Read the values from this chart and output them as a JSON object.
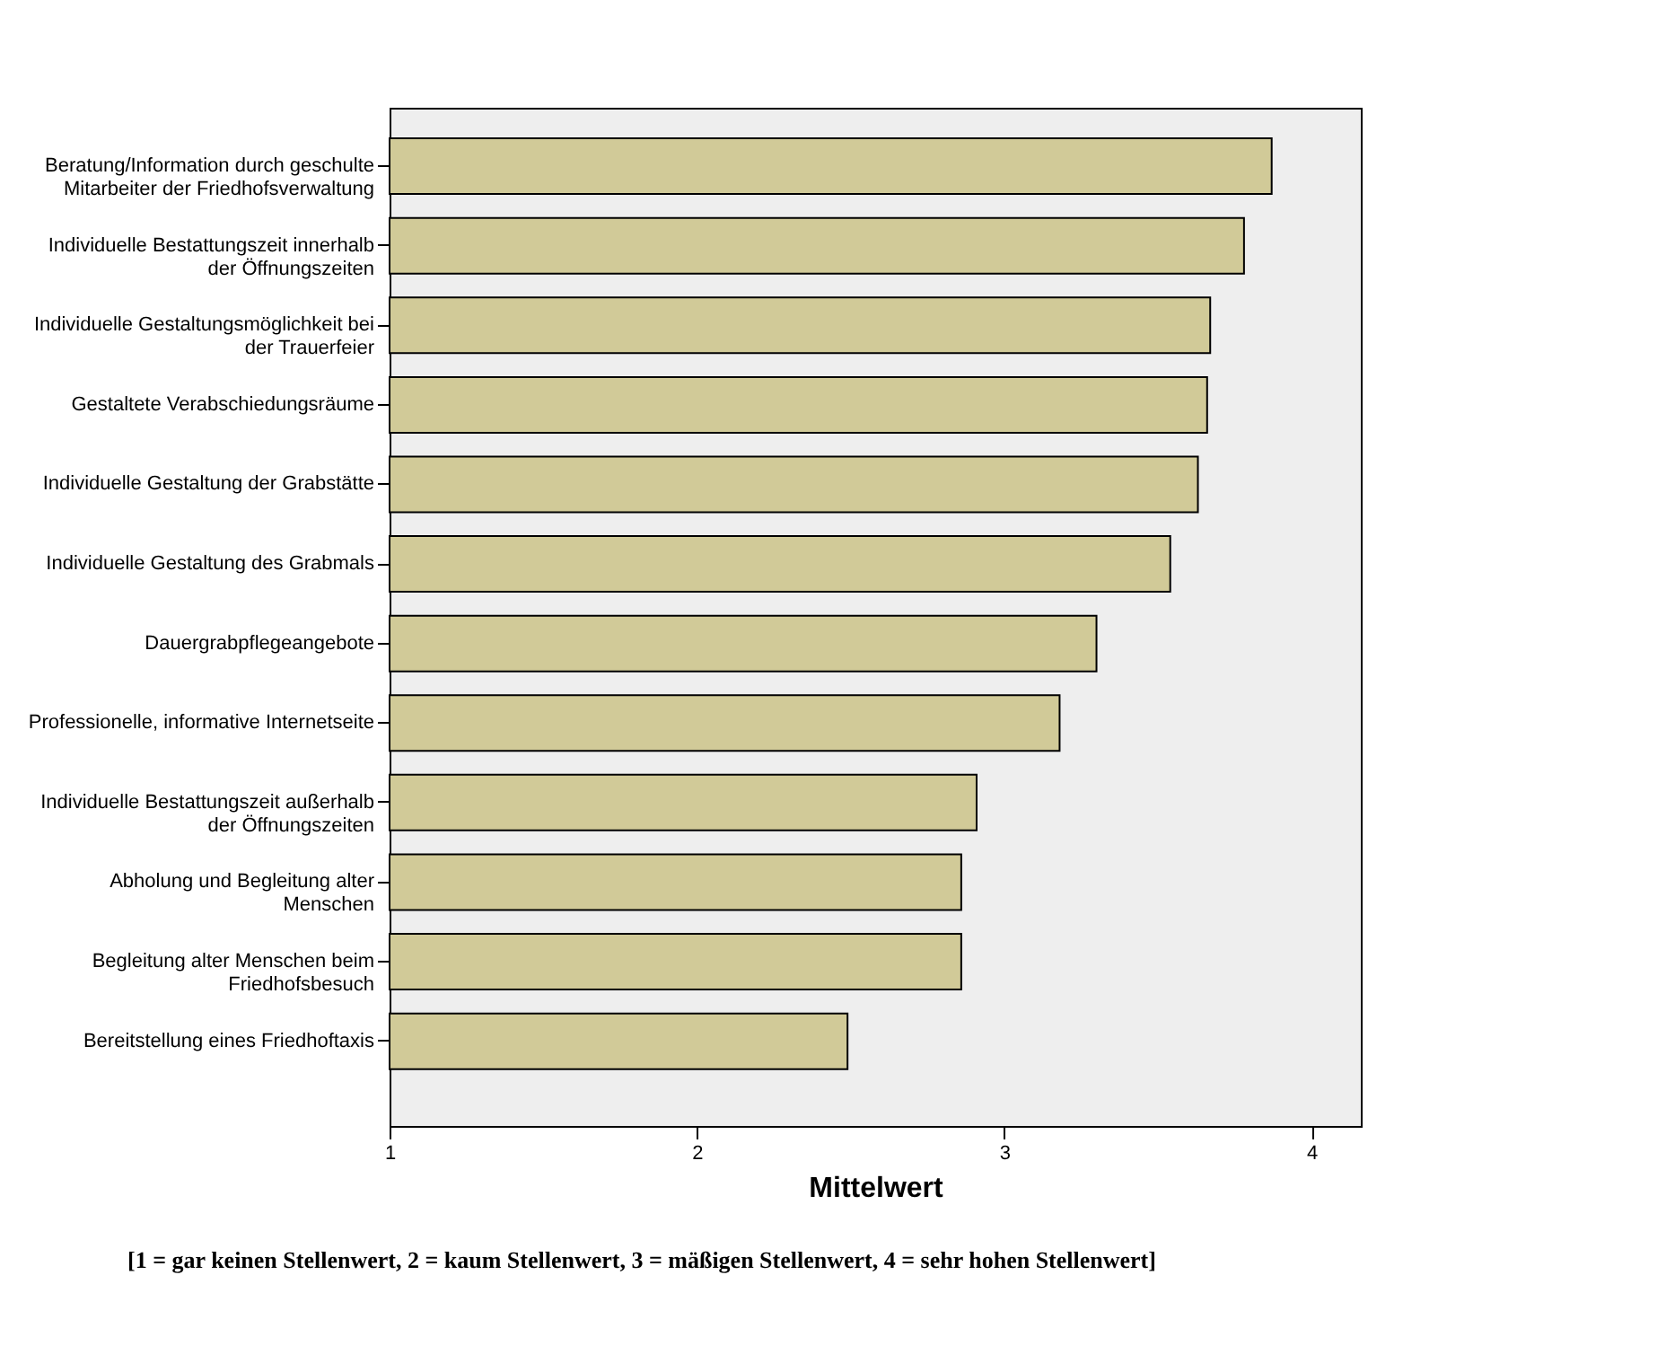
{
  "chart_data": {
    "type": "bar",
    "orientation": "horizontal",
    "categories": [
      "Beratung/Information durch geschulte\nMitarbeiter der Friedhofsverwaltung",
      "Individuelle Bestattungszeit innerhalb\nder Öffnungszeiten",
      "Individuelle Gestaltungsmöglichkeit bei\nder Trauerfeier",
      "Gestaltete Verabschiedungsräume",
      "Individuelle Gestaltung der Grabstätte",
      "Individuelle Gestaltung des Grabmals",
      "Dauergrabpflegeangebote",
      "Professionelle, informative Internetseite",
      "Individuelle Bestattungszeit außerhalb\nder Öffnungszeiten",
      "Abholung und Begleitung alter\nMenschen",
      "Begleitung alter Menschen beim\nFriedhofsbesuch",
      "Bereitstellung eines Friedhoftaxis"
    ],
    "values": [
      3.87,
      3.78,
      3.67,
      3.66,
      3.63,
      3.54,
      3.3,
      3.18,
      2.91,
      2.86,
      2.86,
      2.49
    ],
    "color": "#d1ca98",
    "xlabel": "Mittelwert",
    "xlim": [
      1,
      4.16
    ],
    "xticks": [
      1,
      2,
      3,
      4
    ],
    "grid": false,
    "annotations": [
      "[1 = gar keinen Stellenwert, 2 = kaum Stellenwert, 3 = mäßigen Stellenwert, 4 = sehr hohen Stellenwert]"
    ]
  }
}
